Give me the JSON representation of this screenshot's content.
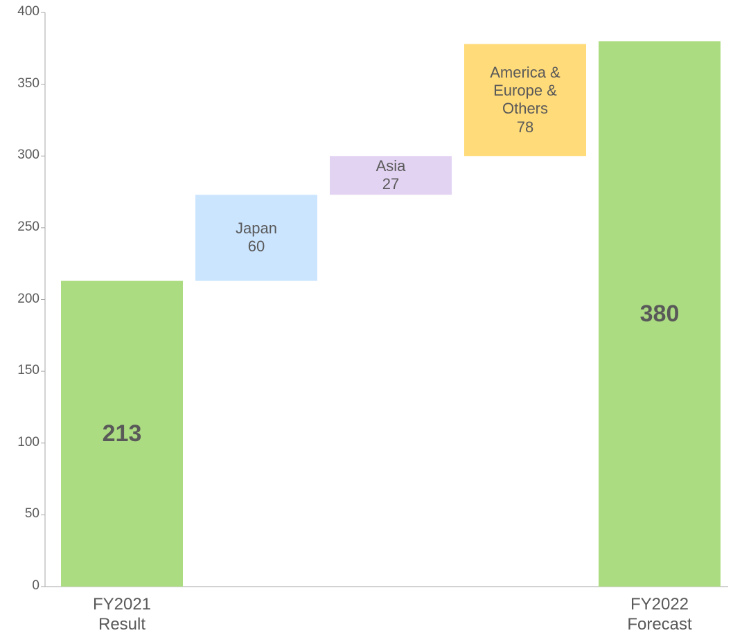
{
  "chart_data": {
    "type": "waterfall",
    "categories": [
      "FY2021 Result",
      "Japan",
      "Asia",
      "America & Europe & Others",
      "FY2022 Forecast"
    ],
    "measure": [
      "total",
      "relative",
      "relative",
      "relative",
      "total"
    ],
    "values": [
      213,
      60,
      27,
      78,
      380
    ],
    "colors": [
      "#acdc82",
      "#cce5ff",
      "#e3d3f3",
      "#ffdb7a",
      "#acdc82"
    ],
    "ylim": [
      0,
      400
    ],
    "yticks": [
      0,
      50,
      100,
      150,
      200,
      250,
      300,
      350,
      400
    ]
  }
}
